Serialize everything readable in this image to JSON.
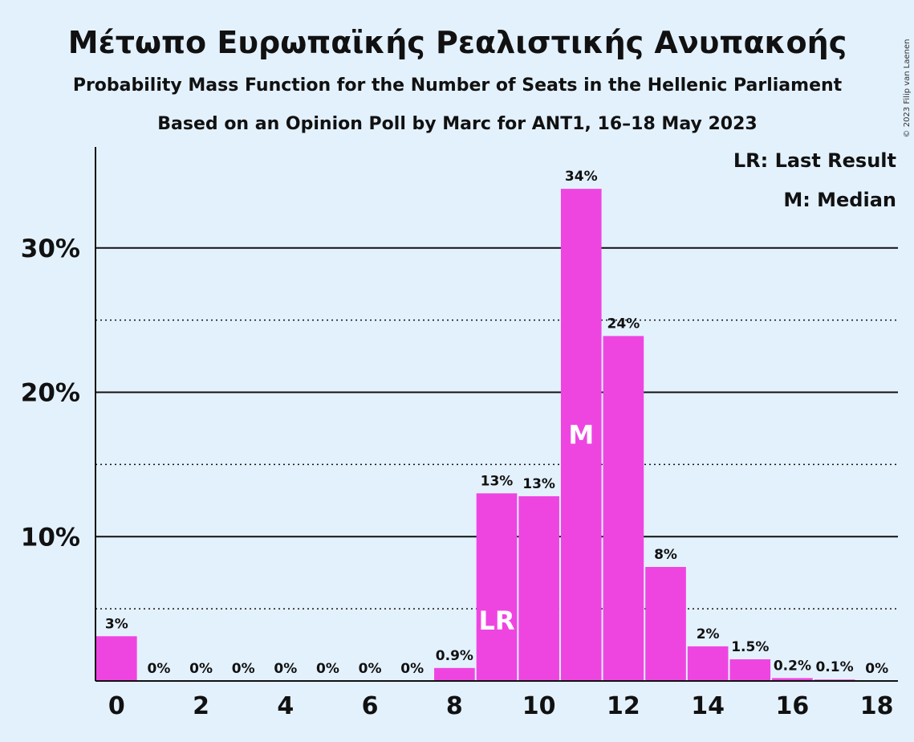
{
  "chart_data": {
    "type": "bar",
    "title": "Μέτωπο Ευρωπαϊκής Ρεαλιστικής Ανυπακοής",
    "subtitle": "Probability Mass Function for the Number of Seats in the Hellenic Parliament",
    "subtitle2": "Based on an Opinion Poll by Marc for ANT1, 16–18 May 2023",
    "copyright": "© 2023 Filip van Laenen",
    "x": [
      0,
      1,
      2,
      3,
      4,
      5,
      6,
      7,
      8,
      9,
      10,
      11,
      12,
      13,
      14,
      15,
      16,
      17,
      18
    ],
    "values": [
      3.1,
      0,
      0,
      0,
      0,
      0,
      0,
      0,
      0.9,
      13.0,
      12.8,
      34.1,
      23.9,
      7.9,
      2.4,
      1.5,
      0.2,
      0.1,
      0
    ],
    "data_labels": [
      "3%",
      "0%",
      "0%",
      "0%",
      "0%",
      "0%",
      "0%",
      "0%",
      "0.9%",
      "13%",
      "13%",
      "34%",
      "24%",
      "8%",
      "2%",
      "1.5%",
      "0.2%",
      "0.1%",
      "0%"
    ],
    "x_tick_labels": [
      "0",
      "2",
      "4",
      "6",
      "8",
      "10",
      "12",
      "14",
      "16",
      "18"
    ],
    "x_tick_values": [
      0,
      2,
      4,
      6,
      8,
      10,
      12,
      14,
      16,
      18
    ],
    "y_tick_labels": [
      "10%",
      "20%",
      "30%"
    ],
    "y_tick_values": [
      10,
      20,
      30
    ],
    "y_dotted_values": [
      5,
      15,
      25
    ],
    "ylim": [
      0,
      37
    ],
    "xlim": [
      -0.5,
      18.5
    ],
    "bar_color": "#ee45e1",
    "last_result": {
      "seat": 9,
      "label": "LR"
    },
    "median": {
      "seat": 11,
      "label": "M"
    },
    "legend": [
      "LR: Last Result",
      "M: Median"
    ],
    "legend_position": "top-right",
    "grid": true
  }
}
